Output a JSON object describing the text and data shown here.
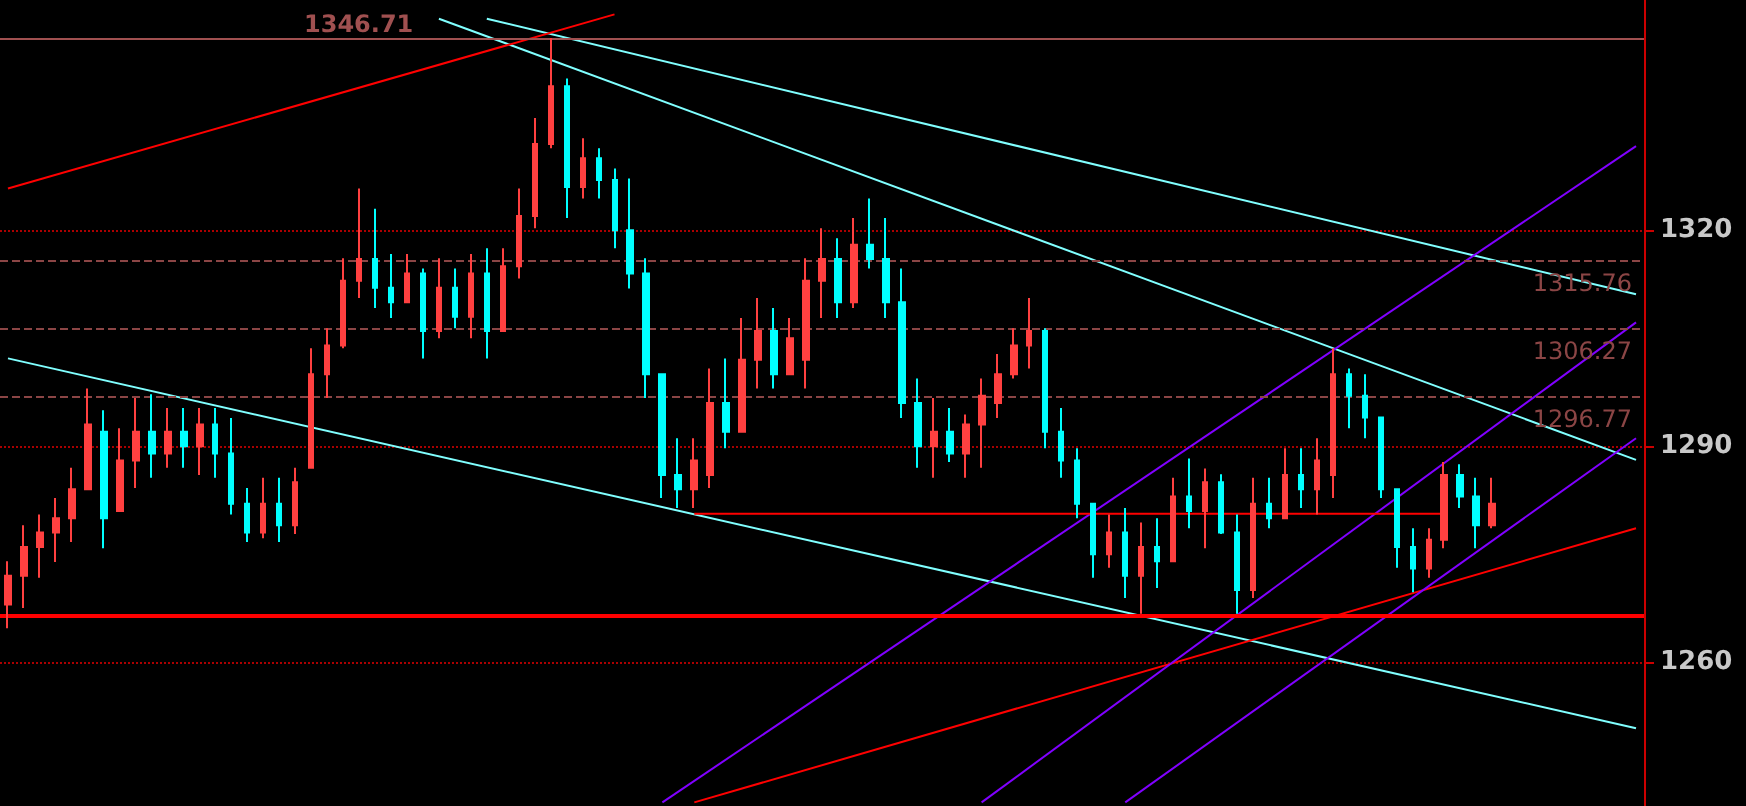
{
  "chart_data": {
    "type": "candlestick",
    "categories": [
      null,
      null,
      null,
      null,
      null,
      null,
      null,
      null,
      null,
      null,
      null,
      null,
      null,
      null,
      null,
      null,
      null,
      null,
      null,
      null,
      null,
      null,
      null,
      null,
      null,
      null,
      null,
      null,
      null,
      null,
      null,
      null,
      null,
      null,
      null,
      null,
      null,
      null,
      null,
      null,
      null,
      null,
      null,
      null,
      null,
      null,
      null,
      null,
      null,
      null,
      null,
      null,
      null,
      null,
      null,
      null,
      null,
      null,
      null,
      null,
      null,
      null,
      null,
      null,
      null,
      null,
      null,
      null,
      null,
      null,
      null,
      null,
      null,
      null,
      null,
      null,
      null,
      null,
      null,
      null,
      null,
      null,
      null,
      null,
      null,
      null,
      null,
      null,
      null,
      null,
      null,
      null,
      null,
      null,
      null,
      null,
      null,
      null,
      null,
      null,
      null,
      null,
      null
    ],
    "ohlc": [
      [
        1268,
        1274,
        1264.7,
        1272
      ],
      [
        1272,
        1279,
        1267.5,
        1276
      ],
      [
        1276,
        1280.5,
        1271.7,
        1278
      ],
      [
        1278,
        1282.8,
        1273.9,
        1280
      ],
      [
        1280,
        1287,
        1276.7,
        1284
      ],
      [
        1284,
        1298,
        1284,
        1293
      ],
      [
        1292,
        1295,
        1275.8,
        1280
      ],
      [
        1281,
        1292.5,
        1281,
        1288
      ],
      [
        1288,
        1296.7,
        1284.2,
        1292
      ],
      [
        1292,
        1297.2,
        1285.6,
        1289
      ],
      [
        1289,
        1295.3,
        1287,
        1292
      ],
      [
        1292,
        1295.3,
        1287,
        1290
      ],
      [
        1290,
        1295.3,
        1286,
        1293
      ],
      [
        1293,
        1295.3,
        1285.6,
        1289
      ],
      [
        1289,
        1293.9,
        1280.5,
        1282
      ],
      [
        1282,
        1284.2,
        1276.7,
        1278
      ],
      [
        1278,
        1285.6,
        1277.2,
        1282
      ],
      [
        1282,
        1285.6,
        1276.7,
        1279
      ],
      [
        1279,
        1287,
        1277.8,
        1285
      ],
      [
        1287,
        1303.6,
        1287,
        1300
      ],
      [
        1300,
        1306.4,
        1296.7,
        1304
      ],
      [
        1304,
        1316.1,
        1303.6,
        1313
      ],
      [
        1313,
        1325.8,
        1310.6,
        1316
      ],
      [
        1316,
        1323,
        1309.2,
        1312
      ],
      [
        1312,
        1316.7,
        1307.8,
        1310
      ],
      [
        1310,
        1316.7,
        1310,
        1314
      ],
      [
        1314,
        1314.7,
        1302.2,
        1306
      ],
      [
        1306,
        1316.1,
        1305,
        1312
      ],
      [
        1312,
        1314.7,
        1306.4,
        1308
      ],
      [
        1308,
        1316.7,
        1305,
        1314
      ],
      [
        1314,
        1317.5,
        1302.2,
        1306
      ],
      [
        1306,
        1317.5,
        1306,
        1315
      ],
      [
        1315,
        1325.8,
        1313.3,
        1322
      ],
      [
        1322,
        1335.6,
        1320.3,
        1332
      ],
      [
        1332,
        1346.71,
        1331.4,
        1340
      ],
      [
        1340,
        1341.1,
        1321.7,
        1326
      ],
      [
        1326,
        1332.8,
        1324.4,
        1330
      ],
      [
        1330,
        1331.4,
        1324.4,
        1327
      ],
      [
        1327,
        1328.6,
        1317.5,
        1320
      ],
      [
        1320,
        1327.2,
        1311.9,
        1314
      ],
      [
        1314,
        1316.1,
        1296.7,
        1300
      ],
      [
        1300,
        1300,
        1282.8,
        1286
      ],
      [
        1286,
        1291.1,
        1281.4,
        1284
      ],
      [
        1284,
        1291.1,
        1281.4,
        1288
      ],
      [
        1286,
        1300.8,
        1284.2,
        1296
      ],
      [
        1296,
        1302.2,
        1289.7,
        1292
      ],
      [
        1292,
        1307.8,
        1292,
        1302
      ],
      [
        1302,
        1310.6,
        1298,
        1306
      ],
      [
        1306,
        1309.2,
        1298,
        1300
      ],
      [
        1300,
        1307.8,
        1300,
        1305
      ],
      [
        1302,
        1316.1,
        1298,
        1313
      ],
      [
        1313,
        1320.3,
        1307.8,
        1316
      ],
      [
        1316,
        1318.9,
        1307.8,
        1310
      ],
      [
        1310,
        1321.7,
        1309.2,
        1318
      ],
      [
        1318,
        1324.4,
        1314.7,
        1316
      ],
      [
        1316,
        1321.7,
        1307.8,
        1310
      ],
      [
        1310,
        1314.7,
        1293.9,
        1296
      ],
      [
        1296,
        1299.4,
        1287,
        1290
      ],
      [
        1290,
        1296.7,
        1285.6,
        1292
      ],
      [
        1292,
        1295.3,
        1287.8,
        1289
      ],
      [
        1289,
        1294.4,
        1285.6,
        1293
      ],
      [
        1293,
        1299.4,
        1287,
        1297
      ],
      [
        1296,
        1302.8,
        1293.9,
        1300
      ],
      [
        1300,
        1306.4,
        1299.4,
        1304
      ],
      [
        1304,
        1310.6,
        1300.8,
        1306
      ],
      [
        1306,
        1306.4,
        1289.7,
        1292
      ],
      [
        1292,
        1295.3,
        1285.6,
        1288
      ],
      [
        1288,
        1289.7,
        1280,
        1282
      ],
      [
        1282,
        1282,
        1271.7,
        1275
      ],
      [
        1275,
        1280.5,
        1273.1,
        1278
      ],
      [
        1278,
        1281.4,
        1268.9,
        1272
      ],
      [
        1272,
        1279.4,
        1266.7,
        1276
      ],
      [
        1276,
        1280,
        1270.3,
        1274
      ],
      [
        1274,
        1285.6,
        1274,
        1283
      ],
      [
        1283,
        1288.3,
        1278.6,
        1281
      ],
      [
        1281,
        1286.9,
        1275.8,
        1285
      ],
      [
        1285,
        1286.1,
        1277.8,
        1278
      ],
      [
        1278,
        1280.5,
        1266.7,
        1270
      ],
      [
        1270,
        1285.6,
        1268.9,
        1282
      ],
      [
        1282,
        1285.6,
        1278.6,
        1280
      ],
      [
        1280,
        1289.7,
        1280,
        1286
      ],
      [
        1286,
        1289.7,
        1281.4,
        1284
      ],
      [
        1284,
        1291.1,
        1280.5,
        1288
      ],
      [
        1286,
        1303.6,
        1282.8,
        1300
      ],
      [
        1300,
        1300.8,
        1292.5,
        1297
      ],
      [
        1297,
        1300,
        1291.1,
        1294
      ],
      [
        1294,
        1294,
        1282.8,
        1284
      ],
      [
        1284,
        1284,
        1273.1,
        1276
      ],
      [
        1276,
        1278.6,
        1269.7,
        1273
      ],
      [
        1273,
        1278.6,
        1271.7,
        1277
      ],
      [
        1277,
        1287.8,
        1275.8,
        1286
      ],
      [
        1286,
        1287.5,
        1281.4,
        1283
      ],
      [
        1283,
        1285.6,
        1275.8,
        1279
      ],
      [
        1279,
        1285.6,
        1278.6,
        1282
      ],
      null,
      null,
      null,
      null,
      null,
      null,
      null,
      null,
      null
    ],
    "series": [
      {
        "type": "line",
        "color": "#80ffff",
        "values": [
          1302.2,
          null,
          null,
          null,
          null,
          null,
          null,
          null,
          null,
          null,
          null,
          null,
          null,
          null,
          null,
          null,
          null,
          null,
          null,
          null,
          null,
          null,
          null,
          null,
          null,
          null,
          null,
          null,
          null,
          null,
          null,
          null,
          null,
          null,
          null,
          null,
          null,
          null,
          null,
          null,
          null,
          null,
          null,
          null,
          null,
          null,
          null,
          null,
          null,
          null,
          null,
          null,
          null,
          null,
          null,
          null,
          null,
          null,
          null,
          null,
          null,
          null,
          null,
          null,
          null,
          null,
          null,
          null,
          null,
          null,
          null,
          null,
          null,
          null,
          null,
          null,
          null,
          null,
          null,
          null,
          null,
          null,
          null,
          null,
          null,
          null,
          null,
          null,
          null,
          null,
          null,
          null,
          null,
          null,
          null,
          null,
          null,
          null,
          null,
          null,
          null,
          null,
          1250.8
        ]
      },
      {
        "type": "line",
        "color": "#80ffff",
        "values": [
          null,
          null,
          null,
          null,
          null,
          null,
          null,
          null,
          null,
          null,
          null,
          null,
          null,
          null,
          null,
          null,
          null,
          null,
          null,
          null,
          null,
          null,
          null,
          null,
          null,
          null,
          null,
          null,
          null,
          null,
          1349.4,
          null,
          null,
          null,
          null,
          null,
          null,
          null,
          null,
          null,
          null,
          null,
          null,
          null,
          null,
          null,
          null,
          null,
          null,
          null,
          null,
          null,
          null,
          null,
          null,
          null,
          null,
          null,
          null,
          null,
          null,
          null,
          null,
          null,
          null,
          null,
          null,
          null,
          null,
          null,
          null,
          null,
          null,
          null,
          null,
          null,
          null,
          null,
          null,
          null,
          null,
          null,
          null,
          null,
          null,
          null,
          null,
          null,
          null,
          null,
          null,
          null,
          null,
          null,
          null,
          null,
          null,
          null,
          null,
          null,
          null,
          null,
          1311.1
        ]
      },
      {
        "type": "line",
        "color": "#80ffff",
        "values": [
          null,
          null,
          null,
          null,
          null,
          null,
          null,
          null,
          null,
          null,
          null,
          null,
          null,
          null,
          null,
          null,
          null,
          null,
          null,
          null,
          null,
          null,
          null,
          null,
          null,
          null,
          null,
          1349.4,
          null,
          null,
          null,
          null,
          null,
          null,
          null,
          null,
          null,
          null,
          null,
          null,
          null,
          null,
          null,
          null,
          null,
          null,
          null,
          null,
          null,
          null,
          null,
          null,
          null,
          null,
          null,
          null,
          null,
          null,
          null,
          null,
          null,
          null,
          null,
          null,
          null,
          null,
          null,
          null,
          null,
          null,
          null,
          null,
          null,
          null,
          null,
          null,
          null,
          null,
          null,
          null,
          null,
          null,
          null,
          null,
          null,
          null,
          null,
          null,
          null,
          null,
          null,
          null,
          null,
          null,
          null,
          null,
          null,
          null,
          null,
          null,
          null,
          null,
          1288.1
        ]
      },
      {
        "type": "line",
        "color": "#ff0000",
        "values": [
          1325.8,
          null,
          null,
          null,
          null,
          null,
          null,
          null,
          null,
          null,
          null,
          null,
          null,
          null,
          null,
          null,
          null,
          null,
          null,
          null,
          null,
          null,
          null,
          null,
          null,
          null,
          null,
          null,
          null,
          null,
          null,
          null,
          null,
          null,
          null,
          null,
          null,
          null,
          1350,
          null,
          null,
          null,
          null,
          null,
          null,
          null,
          null,
          null,
          null,
          null,
          null,
          null,
          null,
          null,
          null,
          null,
          null,
          null,
          null,
          null,
          null,
          null,
          null,
          null,
          null,
          null,
          null,
          null,
          null,
          null,
          null,
          null,
          null,
          null,
          null,
          null,
          null,
          null,
          null,
          null,
          null,
          null,
          null,
          null,
          null,
          null,
          null,
          null,
          null,
          null,
          null,
          null,
          null,
          null,
          null,
          null,
          null,
          null,
          null,
          null,
          null,
          null,
          null
        ]
      },
      {
        "type": "line",
        "color": "#ff0000",
        "values": [
          null,
          null,
          null,
          null,
          null,
          null,
          null,
          null,
          null,
          null,
          null,
          null,
          null,
          null,
          null,
          null,
          null,
          null,
          null,
          null,
          null,
          null,
          null,
          null,
          null,
          null,
          null,
          null,
          null,
          null,
          null,
          null,
          null,
          null,
          null,
          null,
          null,
          null,
          null,
          null,
          null,
          null,
          null,
          1240.5,
          null,
          null,
          null,
          null,
          null,
          null,
          null,
          null,
          null,
          null,
          null,
          null,
          null,
          null,
          null,
          null,
          null,
          null,
          null,
          null,
          null,
          null,
          null,
          null,
          null,
          null,
          null,
          null,
          null,
          null,
          null,
          null,
          null,
          null,
          null,
          null,
          null,
          null,
          null,
          null,
          null,
          null,
          null,
          null,
          null,
          null,
          null,
          null,
          null,
          null,
          null,
          null,
          null,
          null,
          null,
          null,
          null,
          null,
          1278.6
        ]
      },
      {
        "type": "line",
        "color": "#8000ff",
        "values": [
          null,
          null,
          null,
          null,
          null,
          null,
          null,
          null,
          null,
          null,
          null,
          null,
          null,
          null,
          null,
          null,
          null,
          null,
          null,
          null,
          null,
          null,
          null,
          null,
          null,
          null,
          null,
          null,
          null,
          null,
          null,
          null,
          null,
          null,
          null,
          null,
          null,
          null,
          null,
          null,
          null,
          1240.5,
          null,
          null,
          null,
          null,
          null,
          null,
          null,
          null,
          null,
          null,
          null,
          null,
          null,
          null,
          null,
          null,
          null,
          null,
          null,
          null,
          null,
          null,
          null,
          null,
          null,
          null,
          null,
          null,
          null,
          null,
          null,
          null,
          null,
          null,
          null,
          null,
          null,
          null,
          null,
          null,
          null,
          null,
          null,
          null,
          null,
          null,
          null,
          null,
          null,
          null,
          null,
          null,
          null,
          null,
          null,
          null,
          null,
          null,
          null,
          null,
          1331.7
        ]
      },
      {
        "type": "line",
        "color": "#8000ff",
        "values": [
          null,
          null,
          null,
          null,
          null,
          null,
          null,
          null,
          null,
          null,
          null,
          null,
          null,
          null,
          null,
          null,
          null,
          null,
          null,
          null,
          null,
          null,
          null,
          null,
          null,
          null,
          null,
          null,
          null,
          null,
          null,
          null,
          null,
          null,
          null,
          null,
          null,
          null,
          null,
          null,
          null,
          null,
          null,
          null,
          null,
          null,
          null,
          null,
          null,
          null,
          null,
          null,
          null,
          null,
          null,
          null,
          null,
          null,
          null,
          null,
          null,
          1240.5,
          null,
          null,
          null,
          null,
          null,
          null,
          null,
          null,
          null,
          null,
          null,
          null,
          null,
          null,
          null,
          null,
          null,
          null,
          null,
          null,
          null,
          null,
          null,
          null,
          null,
          null,
          null,
          null,
          null,
          null,
          null,
          null,
          null,
          null,
          null,
          null,
          null,
          null,
          null,
          null,
          1307.2
        ]
      },
      {
        "type": "line",
        "color": "#8000ff",
        "values": [
          null,
          null,
          null,
          null,
          null,
          null,
          null,
          null,
          null,
          null,
          null,
          null,
          null,
          null,
          null,
          null,
          null,
          null,
          null,
          null,
          null,
          null,
          null,
          null,
          null,
          null,
          null,
          null,
          null,
          null,
          null,
          null,
          null,
          null,
          null,
          null,
          null,
          null,
          null,
          null,
          null,
          null,
          null,
          null,
          null,
          null,
          null,
          null,
          null,
          null,
          null,
          null,
          null,
          null,
          null,
          null,
          null,
          null,
          null,
          null,
          null,
          null,
          null,
          null,
          null,
          null,
          null,
          null,
          null,
          null,
          1240.5,
          null,
          null,
          null,
          null,
          null,
          null,
          null,
          null,
          null,
          null,
          null,
          null,
          null,
          null,
          null,
          null,
          null,
          null,
          null,
          null,
          null,
          null,
          null,
          null,
          null,
          null,
          null,
          null,
          null,
          null,
          null,
          1291.1
        ]
      },
      {
        "type": "line",
        "color": "#ff0000",
        "values": [
          null,
          null,
          null,
          null,
          null,
          null,
          null,
          null,
          null,
          null,
          null,
          null,
          null,
          null,
          null,
          null,
          null,
          null,
          null,
          null,
          null,
          null,
          null,
          null,
          null,
          null,
          null,
          null,
          null,
          null,
          null,
          null,
          null,
          null,
          null,
          null,
          null,
          null,
          null,
          null,
          null,
          null,
          null,
          1280.6,
          null,
          null,
          null,
          null,
          null,
          null,
          null,
          null,
          null,
          null,
          null,
          null,
          null,
          null,
          null,
          null,
          null,
          null,
          null,
          null,
          null,
          null,
          null,
          null,
          null,
          null,
          null,
          null,
          null,
          null,
          null,
          null,
          null,
          null,
          null,
          null,
          null,
          null,
          null,
          null,
          null,
          null,
          null,
          null,
          null,
          null,
          1280.6,
          null,
          null,
          null,
          null,
          null,
          null,
          null,
          null,
          null,
          null,
          null,
          null
        ]
      }
    ],
    "ref_lines": [
      {
        "axis": "y",
        "value": 1346.71,
        "label": "1346.71",
        "color": "#a05050",
        "line_style": "solid"
      },
      {
        "axis": "y",
        "value": 1315.76,
        "label": "1315.76",
        "color": "#8b4545",
        "line_style": "dashed"
      },
      {
        "axis": "y",
        "value": 1306.27,
        "label": "1306.27",
        "color": "#8b4545",
        "line_style": "dashed"
      },
      {
        "axis": "y",
        "value": 1296.77,
        "label": "1296.77",
        "color": "#8b4545",
        "line_style": "dashed"
      },
      {
        "axis": "y",
        "value": 1266.5,
        "color": "#ff0000",
        "line_style": "solid"
      }
    ],
    "ylim": [
      1240,
      1352
    ],
    "yticks": [
      1260,
      1290,
      1320
    ],
    "grid": "y",
    "tick_labels": "y",
    "marker": "none"
  }
}
